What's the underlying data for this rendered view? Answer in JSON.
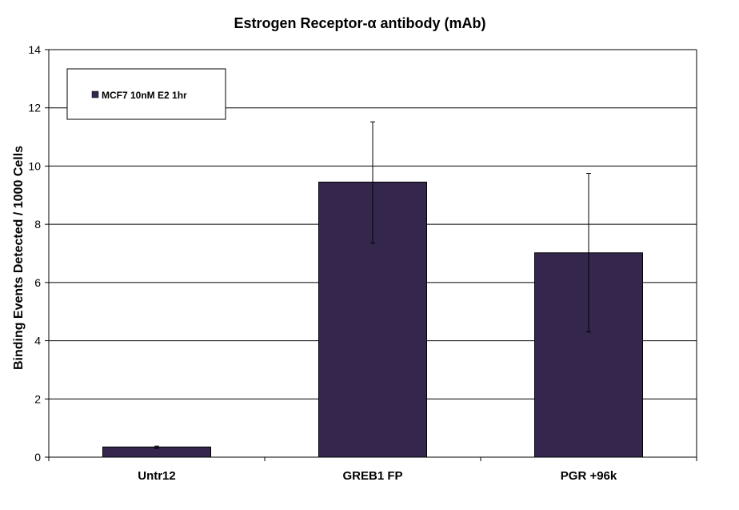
{
  "chart_data": {
    "type": "bar",
    "title": "Estrogen Receptor-α antibody  (mAb)",
    "xlabel": "",
    "ylabel": "Binding Events Detected / 1000 Cells",
    "ylim": [
      0,
      14
    ],
    "yticks": [
      0,
      2,
      4,
      6,
      8,
      10,
      12,
      14
    ],
    "categories": [
      "Untr12",
      "GREB1 FP",
      "PGR +96k"
    ],
    "series": [
      {
        "name": "MCF7 10nM E2 1hr",
        "values": [
          0.35,
          9.45,
          7.02
        ],
        "error_low": [
          0.3,
          7.35,
          4.3
        ],
        "error_high": [
          0.38,
          11.52,
          9.75
        ],
        "color": "#35264e"
      }
    ],
    "grid": true,
    "legend_position": "top-left"
  }
}
